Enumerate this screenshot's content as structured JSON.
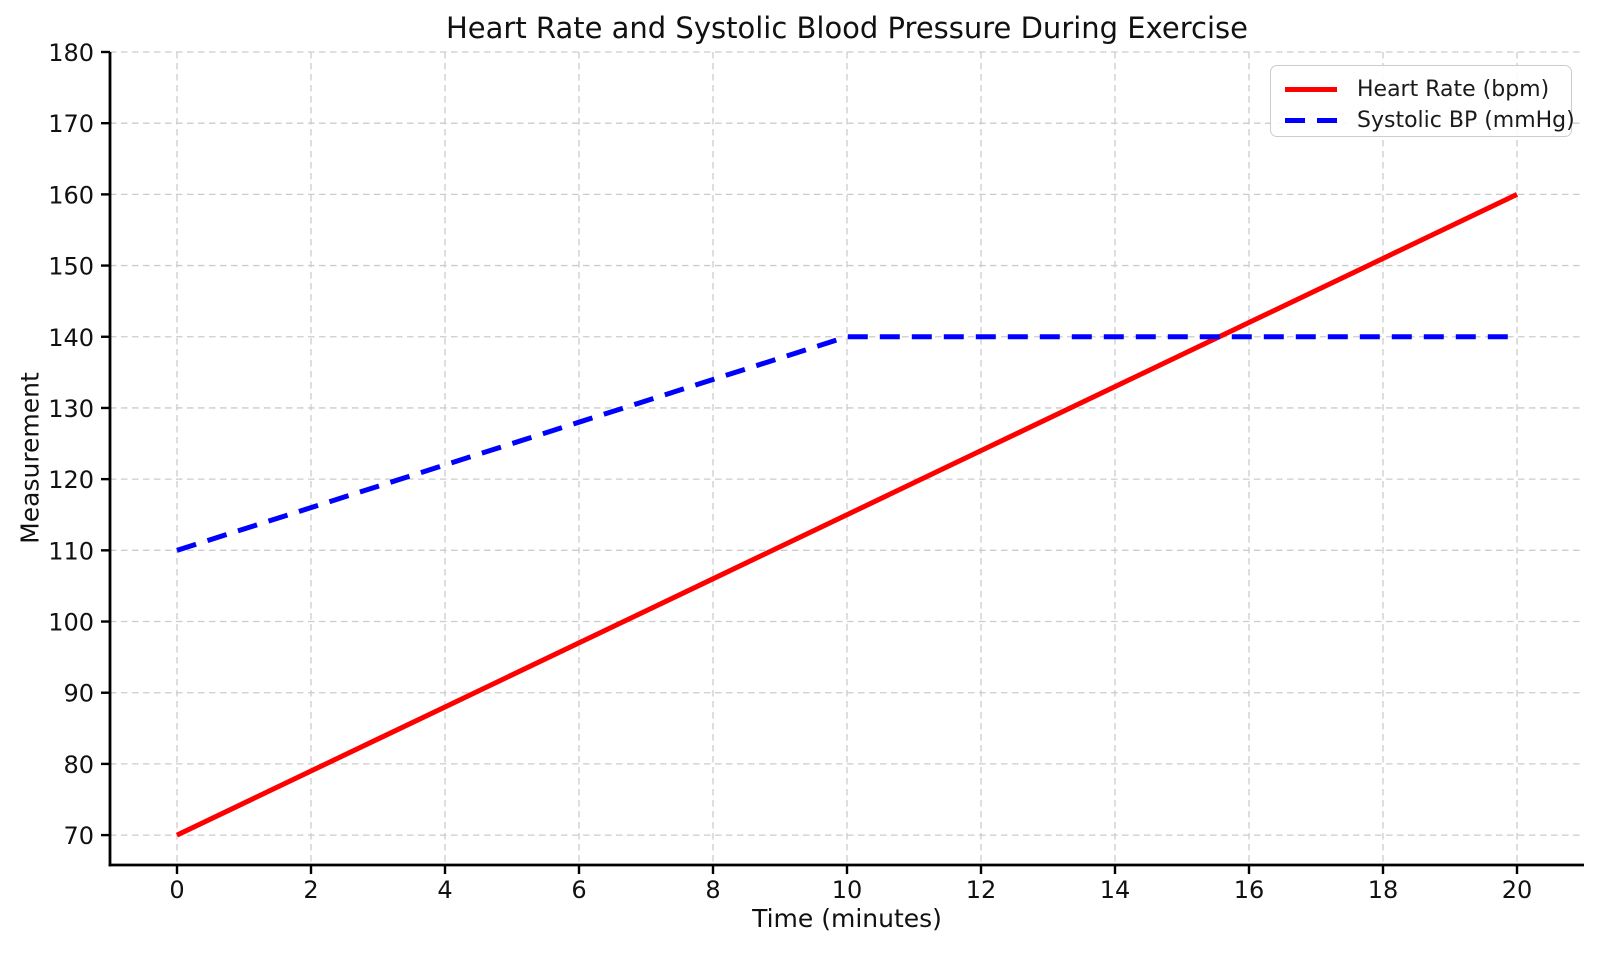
{
  "figure": {
    "background": "#ffffff"
  },
  "chart_data": {
    "type": "line",
    "title": "Heart Rate and Systolic Blood Pressure During Exercise",
    "xlabel": "Time (minutes)",
    "ylabel": "Measurement",
    "x": [
      0,
      2,
      4,
      6,
      8,
      10,
      12,
      14,
      16,
      18,
      20
    ],
    "series": [
      {
        "name": "Heart Rate (bpm)",
        "color": "#ff0000",
        "style": "solid",
        "values": [
          70,
          79,
          88,
          97,
          106,
          115,
          124,
          133,
          142,
          151,
          160
        ]
      },
      {
        "name": "Systolic BP (mmHg)",
        "color": "#0000ff",
        "style": "dashed",
        "values": [
          110,
          116,
          122,
          128,
          134,
          140,
          140,
          140,
          140,
          140,
          140
        ]
      }
    ],
    "x_ticks": [
      0,
      2,
      4,
      6,
      8,
      10,
      12,
      14,
      16,
      18,
      20
    ],
    "y_ticks": [
      70,
      80,
      90,
      100,
      110,
      120,
      130,
      140,
      150,
      160,
      170,
      180
    ],
    "xlim": [
      -1,
      21
    ],
    "ylim": [
      65.8,
      180
    ],
    "grid": true,
    "grid_color": "#cccccc",
    "axis_color": "#000000",
    "legend_position": "upper right"
  }
}
